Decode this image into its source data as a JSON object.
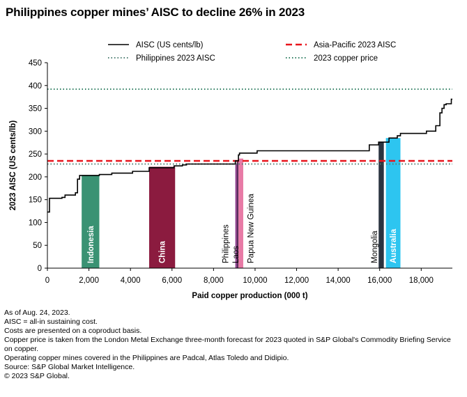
{
  "title": "Philippines copper mines’ AISC to decline 26% in 2023",
  "chart_data": {
    "type": "line",
    "title": "Philippines copper mines’ AISC to decline 26% in 2023",
    "xlabel": "Paid copper production (000 t)",
    "ylabel": "2023 AISC (US cents/lb)",
    "xlim": [
      0,
      19500
    ],
    "ylim": [
      0,
      450
    ],
    "x_ticks": [
      0,
      2000,
      4000,
      6000,
      8000,
      10000,
      12000,
      14000,
      16000,
      18000
    ],
    "x_tick_labels": [
      "0",
      "2,000",
      "4,000",
      "6,000",
      "8,000",
      "10,000",
      "12,000",
      "14,000",
      "16,000",
      "18,000"
    ],
    "y_ticks": [
      0,
      50,
      100,
      150,
      200,
      250,
      300,
      350,
      400,
      450
    ],
    "y_tick_labels": [
      "0",
      "50",
      "100",
      "150",
      "200",
      "250",
      "300",
      "350",
      "400",
      "450"
    ],
    "grid": false,
    "legend_position": "top",
    "legend": [
      {
        "label": "AISC (US cents/lb)",
        "style": "solid",
        "color": "#000000"
      },
      {
        "label": "Asia-Pacific 2023 AISC",
        "style": "dashed",
        "color": "#e8141c"
      },
      {
        "label": "Philippines 2023 AISC",
        "style": "dotted",
        "color": "#4e7d71"
      },
      {
        "label": "2023 copper price",
        "style": "dotted",
        "color": "#2e7d60"
      }
    ],
    "series": [
      {
        "name": "AISC (US cents/lb)",
        "x": [
          0,
          100,
          100,
          700,
          700,
          850,
          850,
          1350,
          1350,
          1450,
          1450,
          1550,
          1550,
          2500,
          2500,
          3100,
          3100,
          4100,
          4100,
          4900,
          4900,
          6100,
          6100,
          6500,
          6500,
          6700,
          6700,
          9050,
          9050,
          9200,
          9200,
          9250,
          9250,
          10100,
          10100,
          15500,
          15500,
          15950,
          15950,
          16450,
          16450,
          16850,
          16850,
          17000,
          17000,
          18250,
          18250,
          18700,
          18700,
          18900,
          18900,
          19000,
          19000,
          19100,
          19100,
          19200,
          19200,
          19450,
          19450,
          19500
        ],
        "y": [
          123,
          123,
          153,
          153,
          155,
          155,
          160,
          160,
          165,
          165,
          195,
          195,
          203,
          203,
          205,
          205,
          208,
          208,
          212,
          212,
          220,
          220,
          224,
          224,
          226,
          226,
          228,
          228,
          235,
          235,
          248,
          248,
          252,
          252,
          257,
          257,
          270,
          270,
          276,
          276,
          285,
          285,
          290,
          290,
          295,
          295,
          300,
          300,
          312,
          312,
          340,
          340,
          350,
          350,
          358,
          358,
          360,
          360,
          370,
          370
        ]
      },
      {
        "name": "Asia-Pacific 2023 AISC",
        "value": 235
      },
      {
        "name": "Philippines 2023 AISC",
        "value": 228
      },
      {
        "name": "2023 copper price",
        "value": 392
      }
    ],
    "highlights": [
      {
        "label": "Indonesia",
        "x0": 1650,
        "x1": 2500,
        "y": 204,
        "color": "#3a9273",
        "label_inside": true
      },
      {
        "label": "China",
        "x0": 4900,
        "x1": 6150,
        "y": 222,
        "color": "#8b1b3f",
        "label_inside": true
      },
      {
        "label": "Philippines",
        "x0": 9050,
        "x1": 9120,
        "y": 228,
        "color": "#8b3a8b",
        "label_inside": false
      },
      {
        "label": "Laos",
        "x0": 9120,
        "x1": 9200,
        "y": 236,
        "color": "#5a2d5a",
        "label_inside": false
      },
      {
        "label": "Papua New Guinea",
        "x0": 9200,
        "x1": 9430,
        "y": 240,
        "color": "#e87aa6",
        "label_inside": false
      },
      {
        "label": "Mongolia",
        "x0": 15950,
        "x1": 16200,
        "y": 276,
        "color": "#2b3440",
        "label_inside": false
      },
      {
        "label": "Australia",
        "x0": 16300,
        "x1": 17000,
        "y": 285,
        "color": "#2dc5f0",
        "label_inside": true
      }
    ]
  },
  "notes": [
    "As of Aug. 24, 2023.",
    "AISC = all-in sustaining cost.",
    "Costs are presented on a coproduct basis.",
    "Copper price is taken from the London Metal Exchange three-month forecast for 2023 quoted in S&P Global's Commodity Briefing Service on copper.",
    "Operating copper mines covered in the Philippines are Padcal, Atlas Toledo and Didipio.",
    "Source: S&P Global Market Intelligence.",
    "© 2023 S&P Global."
  ]
}
